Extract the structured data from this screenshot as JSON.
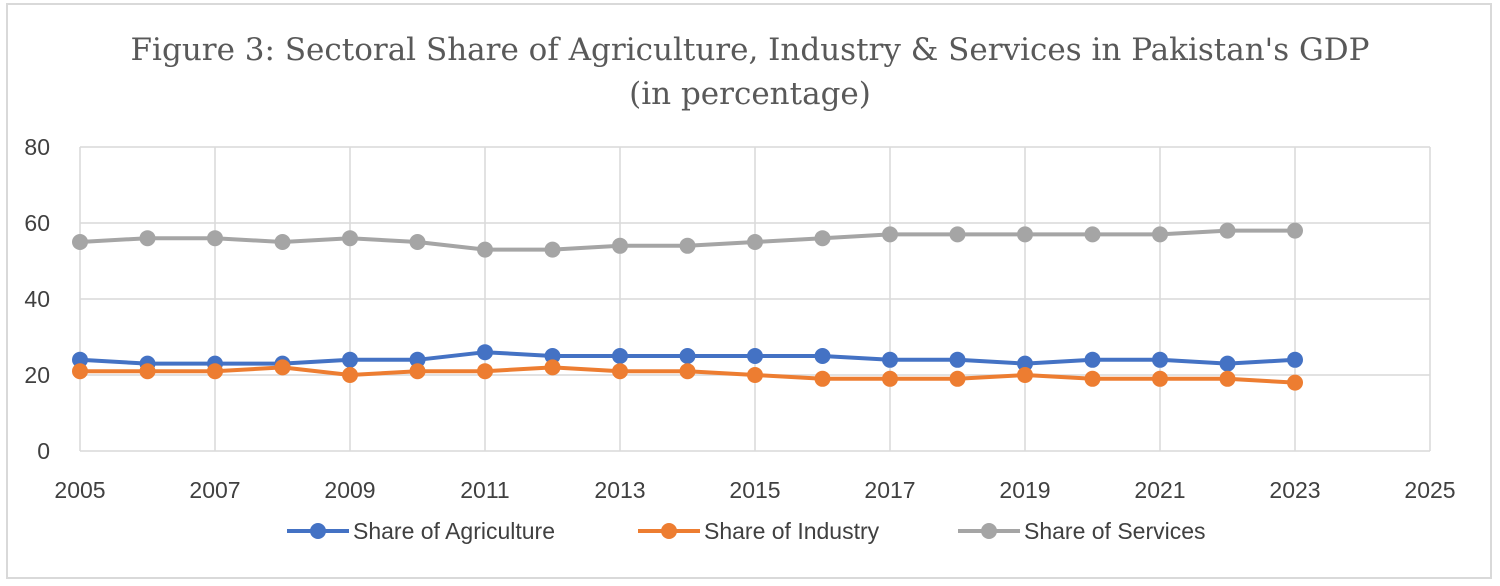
{
  "chart_data": {
    "type": "line",
    "title_line1": "Figure 3: Sectoral Share of  Agriculture, Industry & Services in Pakistan's GDP",
    "title_line2": "(in percentage)",
    "xlabel": "",
    "ylabel": "",
    "xlim": [
      2005,
      2025
    ],
    "ylim": [
      0,
      80
    ],
    "x_ticks": [
      2005,
      2007,
      2009,
      2011,
      2013,
      2015,
      2017,
      2019,
      2021,
      2023,
      2025
    ],
    "y_ticks": [
      0,
      20,
      40,
      60,
      80
    ],
    "grid": true,
    "legend_position": "bottom",
    "x": [
      2005,
      2006,
      2007,
      2008,
      2009,
      2010,
      2011,
      2012,
      2013,
      2014,
      2015,
      2016,
      2017,
      2018,
      2019,
      2020,
      2021,
      2022,
      2023
    ],
    "series": [
      {
        "name": "Share of Agriculture",
        "color": "#4472C4",
        "values": [
          24,
          23,
          23,
          23,
          24,
          24,
          26,
          25,
          25,
          25,
          25,
          25,
          24,
          24,
          23,
          24,
          24,
          23,
          24
        ]
      },
      {
        "name": "Share of Industry",
        "color": "#ED7D31",
        "values": [
          21,
          21,
          21,
          22,
          20,
          21,
          21,
          22,
          21,
          21,
          20,
          19,
          19,
          19,
          20,
          19,
          19,
          19,
          18
        ]
      },
      {
        "name": "Share of Services",
        "color": "#A5A5A5",
        "values": [
          55,
          56,
          56,
          55,
          56,
          55,
          53,
          53,
          54,
          54,
          55,
          56,
          57,
          57,
          57,
          57,
          57,
          58,
          58
        ]
      }
    ]
  }
}
